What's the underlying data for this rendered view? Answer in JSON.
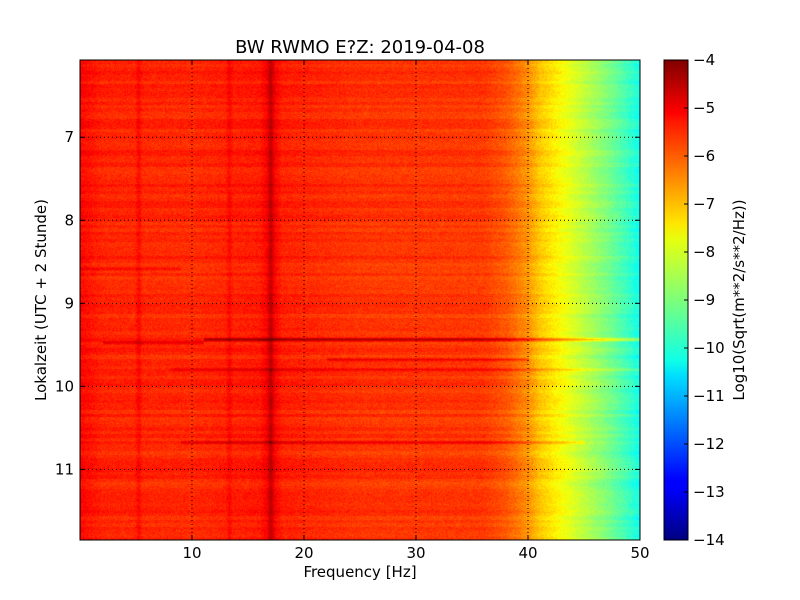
{
  "chart_data": {
    "type": "heatmap",
    "title": "BW RWMO E?Z: 2019-04-08",
    "xlabel": "Frequency [Hz]",
    "ylabel": "Lokalzeit (UTC + 2 Stunde)",
    "xlim": [
      0,
      50
    ],
    "ylim": [
      11.85,
      6.07
    ],
    "y_inverted": true,
    "xticks": [
      10,
      20,
      30,
      40,
      50
    ],
    "yticks": [
      7,
      8,
      9,
      10,
      11
    ],
    "grid": true,
    "colorbar": {
      "label": "Log10(Sqrt(m**2/s**2/Hz))",
      "range": [
        -14,
        -4
      ],
      "ticks": [
        -4,
        -5,
        -6,
        -7,
        -8,
        -9,
        -10,
        -11,
        -12,
        -13,
        -14
      ],
      "colormap": "jet"
    },
    "base_profile": {
      "freq_hz": [
        0,
        2,
        10,
        16,
        17,
        18,
        25,
        36,
        38,
        40,
        41,
        43,
        45,
        47,
        49,
        50
      ],
      "value": [
        -5.3,
        -5.6,
        -5.65,
        -5.5,
        -5.05,
        -5.55,
        -5.75,
        -5.8,
        -6.1,
        -6.7,
        -7.2,
        -7.8,
        -8.4,
        -9.0,
        -9.7,
        -10.1
      ]
    },
    "features": [
      {
        "kind": "horizontal_band",
        "time": 9.43,
        "freq_range": [
          11,
          50
        ],
        "delta": 1.2
      },
      {
        "kind": "horizontal_band",
        "time": 9.47,
        "freq_range": [
          2,
          11
        ],
        "delta": 0.8
      },
      {
        "kind": "horizontal_band",
        "time": 9.67,
        "freq_range": [
          22,
          40
        ],
        "delta": 0.7
      },
      {
        "kind": "horizontal_band",
        "time": 9.79,
        "freq_range": [
          8,
          50
        ],
        "delta": 0.55
      },
      {
        "kind": "horizontal_band",
        "time": 10.67,
        "freq_range": [
          9,
          45
        ],
        "delta": 0.6
      },
      {
        "kind": "horizontal_band",
        "time": 8.58,
        "freq_range": [
          0,
          9
        ],
        "delta": 0.45
      },
      {
        "kind": "vertical_line",
        "freq": 17,
        "delta": 0.5
      },
      {
        "kind": "vertical_line",
        "freq": 5.2,
        "delta": 0.35
      },
      {
        "kind": "vertical_line",
        "freq": 13.3,
        "delta": 0.3
      }
    ]
  }
}
